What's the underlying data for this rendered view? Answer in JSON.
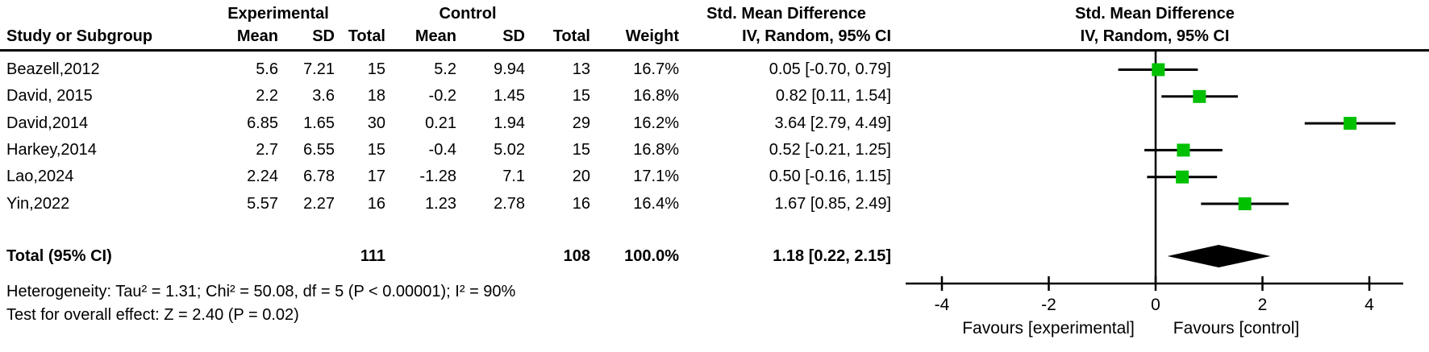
{
  "figure": {
    "background": "#ffffff",
    "text_color": "#000000",
    "line_color": "#000000",
    "marker_color": "#00C000",
    "diamond_color": "#000000"
  },
  "table": {
    "group_headers": {
      "experimental": "Experimental",
      "control": "Control"
    },
    "col_headers": {
      "study": "Study or Subgroup",
      "mean": "Mean",
      "sd": "SD",
      "total": "Total",
      "weight": "Weight",
      "smd_line1": "Std. Mean Difference",
      "smd_line2": "IV, Random, 95% CI"
    },
    "total_row": {
      "label": "Total (95% CI)",
      "exp_total": "111",
      "ctrl_total": "108",
      "weight": "100.0%",
      "ci_text": "1.18 [0.22, 2.15]"
    },
    "footer": {
      "heterogeneity": "Heterogeneity: Tau² = 1.31; Chi² = 50.08, df = 5 (P < 0.00001); I² = 90%",
      "overall_effect": "Test for overall effect: Z = 2.40 (P = 0.02)"
    }
  },
  "chart_data": {
    "type": "forest",
    "title": "Std. Mean Difference",
    "subtitle": "IV, Random, 95% CI",
    "effect_model": "IV, Random, 95% CI",
    "axis": {
      "ticks": [
        -4,
        -2,
        0,
        2,
        4
      ],
      "xlim": [
        -4.68,
        4.63
      ],
      "zero_line": 0,
      "favours_left": "Favours [experimental]",
      "favours_right": "Favours [control]"
    },
    "studies": [
      {
        "name": "Beazell,2012",
        "exp_mean": "5.6",
        "exp_sd": "7.21",
        "exp_total": "15",
        "ctrl_mean": "5.2",
        "ctrl_sd": "9.94",
        "ctrl_total": "13",
        "weight": "16.7%",
        "ci_text": "0.05 [-0.70, 0.79]",
        "smd": 0.05,
        "lo": -0.7,
        "hi": 0.79
      },
      {
        "name": "David, 2015",
        "exp_mean": "2.2",
        "exp_sd": "3.6",
        "exp_total": "18",
        "ctrl_mean": "-0.2",
        "ctrl_sd": "1.45",
        "ctrl_total": "15",
        "weight": "16.8%",
        "ci_text": "0.82 [0.11, 1.54]",
        "smd": 0.82,
        "lo": 0.11,
        "hi": 1.54
      },
      {
        "name": "David,2014",
        "exp_mean": "6.85",
        "exp_sd": "1.65",
        "exp_total": "30",
        "ctrl_mean": "0.21",
        "ctrl_sd": "1.94",
        "ctrl_total": "29",
        "weight": "16.2%",
        "ci_text": "3.64 [2.79, 4.49]",
        "smd": 3.64,
        "lo": 2.79,
        "hi": 4.49
      },
      {
        "name": "Harkey,2014",
        "exp_mean": "2.7",
        "exp_sd": "6.55",
        "exp_total": "15",
        "ctrl_mean": "-0.4",
        "ctrl_sd": "5.02",
        "ctrl_total": "15",
        "weight": "16.8%",
        "ci_text": "0.52 [-0.21, 1.25]",
        "smd": 0.52,
        "lo": -0.21,
        "hi": 1.25
      },
      {
        "name": "Lao,2024",
        "exp_mean": "2.24",
        "exp_sd": "6.78",
        "exp_total": "17",
        "ctrl_mean": "-1.28",
        "ctrl_sd": "7.1",
        "ctrl_total": "20",
        "weight": "17.1%",
        "ci_text": "0.50 [-0.16, 1.15]",
        "smd": 0.5,
        "lo": -0.16,
        "hi": 1.15
      },
      {
        "name": "Yin,2022",
        "exp_mean": "5.57",
        "exp_sd": "2.27",
        "exp_total": "16",
        "ctrl_mean": "1.23",
        "ctrl_sd": "2.78",
        "ctrl_total": "16",
        "weight": "16.4%",
        "ci_text": "1.67 [0.85, 2.49]",
        "smd": 1.67,
        "lo": 0.85,
        "hi": 2.49
      }
    ],
    "total": {
      "smd": 1.18,
      "lo": 0.22,
      "hi": 2.15
    }
  }
}
